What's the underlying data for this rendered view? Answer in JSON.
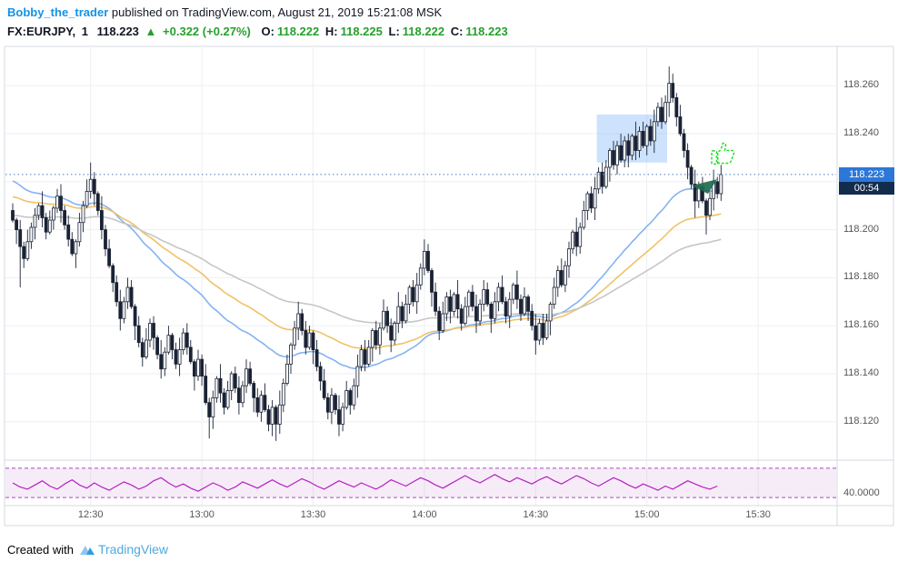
{
  "header": {
    "author": "Bobby_the_trader",
    "published": "published on TradingView.com, August 21, 2019 15:21:08 MSK"
  },
  "symbol_bar": {
    "symbol": "FX:EURJPY,",
    "interval": "1",
    "last_price": "118.223",
    "arrow": "▲",
    "change": "+0.322 (+0.27%)",
    "o_label": "O:",
    "o": "118.222",
    "h_label": "H:",
    "h": "118.225",
    "l_label": "L:",
    "l": "118.222",
    "c_label": "C:",
    "c": "118.223"
  },
  "price_axis": {
    "labels": [
      {
        "text": "118.260",
        "price": 118.26
      },
      {
        "text": "118.240",
        "price": 118.24
      },
      {
        "text": "118.200",
        "price": 118.2
      },
      {
        "text": "118.180",
        "price": 118.18
      },
      {
        "text": "118.160",
        "price": 118.16
      },
      {
        "text": "118.140",
        "price": 118.14
      },
      {
        "text": "118.120",
        "price": 118.12
      }
    ],
    "badge": "118.223",
    "countdown": "00:54",
    "osc_label": "40.0000",
    "osc_label_value": 40
  },
  "time_axis": {
    "labels": [
      {
        "text": "12:30",
        "minute_index": 21
      },
      {
        "text": "13:00",
        "minute_index": 51
      },
      {
        "text": "13:30",
        "minute_index": 81
      },
      {
        "text": "14:00",
        "minute_index": 111
      },
      {
        "text": "14:30",
        "minute_index": 141
      },
      {
        "text": "15:00",
        "minute_index": 171
      },
      {
        "text": "15:30",
        "minute_index": 201
      }
    ]
  },
  "footer": {
    "created_with": "Created with",
    "brand": "TradingView"
  },
  "colors": {
    "accent_blue": "#1592e6",
    "green": "#26a02e",
    "badge_blue": "#2c77d8",
    "countdown_navy": "#132c4e",
    "candle": "#1a2235",
    "ma_fast": "#85b3f2",
    "ma_mid": "#f0c266",
    "ma_slow": "#c6c6c6",
    "osc_line": "#b520c0",
    "osc_band": "#ab47bc",
    "grid": "#edeff4",
    "border": "#d6d9e0",
    "price_line": "#4d7cc1",
    "highlight": "rgba(144,191,249,0.45)",
    "thumb_green": "#1de01d",
    "marker_green": "#1f6b4e",
    "axis_text": "#555555"
  },
  "chart_data": {
    "type": "candlestick",
    "title": "FX:EURJPY 1-minute, August 21 2019, published 15:21:08 MSK",
    "symbol": "FX:EURJPY",
    "interval": "1 minute",
    "start_time": "12:09",
    "end_time": "15:20",
    "current_price": 118.223,
    "ylim": [
      118.104,
      118.276
    ],
    "grid_prices": [
      118.12,
      118.14,
      118.16,
      118.18,
      118.2,
      118.22,
      118.24,
      118.26
    ],
    "first_open": 118.208,
    "closes": [
      118.204,
      118.2,
      118.193,
      118.188,
      118.195,
      118.201,
      118.206,
      118.21,
      118.205,
      118.199,
      118.204,
      118.209,
      118.214,
      118.208,
      118.202,
      118.196,
      118.19,
      118.195,
      118.203,
      118.21,
      118.216,
      118.221,
      118.215,
      118.208,
      118.2,
      118.192,
      118.185,
      118.178,
      118.17,
      118.163,
      118.17,
      118.176,
      118.168,
      118.16,
      118.153,
      118.147,
      118.154,
      118.161,
      118.155,
      118.148,
      118.142,
      118.149,
      118.156,
      118.15,
      118.144,
      118.15,
      118.157,
      118.151,
      118.145,
      118.139,
      118.146,
      118.139,
      118.128,
      118.122,
      118.13,
      118.138,
      118.132,
      118.126,
      118.133,
      118.14,
      118.134,
      118.128,
      118.135,
      118.142,
      118.136,
      118.13,
      118.124,
      118.131,
      118.125,
      118.119,
      118.126,
      118.119,
      118.127,
      118.136,
      118.144,
      118.152,
      118.159,
      118.165,
      118.158,
      118.151,
      118.157,
      118.15,
      118.143,
      118.137,
      118.13,
      118.124,
      118.131,
      118.125,
      118.119,
      118.126,
      118.133,
      118.127,
      118.135,
      118.143,
      118.15,
      118.144,
      118.151,
      118.158,
      118.152,
      118.159,
      118.166,
      118.16,
      118.154,
      118.161,
      118.168,
      118.162,
      118.169,
      118.176,
      118.17,
      118.177,
      118.184,
      118.191,
      118.183,
      118.174,
      118.166,
      118.158,
      118.165,
      118.172,
      118.166,
      118.173,
      118.167,
      118.161,
      118.168,
      118.174,
      118.168,
      118.162,
      118.169,
      118.175,
      118.169,
      118.163,
      118.17,
      118.176,
      118.17,
      118.164,
      118.171,
      118.177,
      118.171,
      118.165,
      118.172,
      118.166,
      118.16,
      118.154,
      118.161,
      118.155,
      118.162,
      118.169,
      118.176,
      118.183,
      118.177,
      118.185,
      118.192,
      118.199,
      118.193,
      118.201,
      118.208,
      118.215,
      118.209,
      118.217,
      118.224,
      118.218,
      118.226,
      118.233,
      118.227,
      118.235,
      118.229,
      118.237,
      118.231,
      118.239,
      118.233,
      118.241,
      118.235,
      118.243,
      118.237,
      118.245,
      118.251,
      118.245,
      118.253,
      118.261,
      118.255,
      118.247,
      118.24,
      118.233,
      118.226,
      118.219,
      118.212,
      118.218,
      118.212,
      118.206,
      118.213,
      118.22,
      118.215,
      118.223
    ],
    "wick_pattern": [
      0.003,
      0.001,
      0.004,
      0.002,
      0.005,
      0.002,
      0.003,
      0.001,
      0.006,
      0.002,
      0.004,
      0.001,
      0.003,
      0.005,
      0.002,
      0.004
    ],
    "spikes": [
      {
        "i": 2,
        "low": 118.176
      },
      {
        "i": 21,
        "high": 118.228
      },
      {
        "i": 53,
        "low": 118.113
      },
      {
        "i": 71,
        "low": 118.112
      },
      {
        "i": 88,
        "low": 118.114
      },
      {
        "i": 111,
        "high": 118.196
      },
      {
        "i": 141,
        "low": 118.148
      },
      {
        "i": 177,
        "high": 118.268
      },
      {
        "i": 184,
        "low": 118.205
      },
      {
        "i": 187,
        "low": 118.198
      }
    ],
    "overlays": [
      {
        "name": "ma-fast",
        "type": "ema",
        "alpha": 0.04,
        "seed": 118.221
      },
      {
        "name": "ma-mid",
        "type": "ema",
        "alpha": 0.026,
        "seed": 118.214
      },
      {
        "name": "ma-slow",
        "type": "ema",
        "alpha": 0.016,
        "seed": 118.206
      }
    ],
    "highlight_box": {
      "start_index": 158,
      "end_index": 176,
      "price_top": 118.248,
      "price_bottom": 118.228
    },
    "oscillator": {
      "range": [
        30,
        70
      ],
      "band": [
        36,
        64
      ],
      "step_minutes": 2,
      "right_label": 40,
      "values": [
        50,
        46,
        44,
        48,
        52,
        47,
        44,
        49,
        53,
        48,
        45,
        50,
        46,
        43,
        47,
        51,
        48,
        44,
        47,
        52,
        55,
        50,
        46,
        49,
        45,
        42,
        46,
        50,
        47,
        43,
        46,
        51,
        48,
        45,
        49,
        53,
        49,
        46,
        50,
        54,
        51,
        47,
        44,
        48,
        52,
        49,
        46,
        50,
        47,
        44,
        48,
        53,
        50,
        47,
        51,
        55,
        52,
        48,
        45,
        49,
        53,
        57,
        53,
        50,
        54,
        58,
        54,
        51,
        55,
        52,
        49,
        53,
        56,
        52,
        49,
        53,
        57,
        54,
        50,
        47,
        51,
        55,
        52,
        48,
        45,
        49,
        46,
        43,
        47,
        44,
        48,
        52,
        49,
        46,
        44,
        47
      ]
    },
    "annotations": [
      {
        "name": "thumbs-up",
        "minute_index": 192,
        "price": 118.232
      },
      {
        "name": "publish-marker",
        "minute_index": 186,
        "price": 118.218
      }
    ]
  }
}
